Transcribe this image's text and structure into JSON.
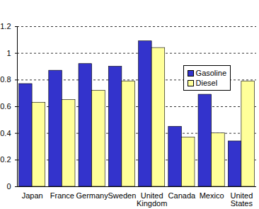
{
  "chart_data": {
    "type": "bar",
    "categories": [
      "Japan",
      "France",
      "Germany",
      "Sweden",
      "United Kingdom",
      "Canada",
      "Mexico",
      "United States"
    ],
    "series": [
      {
        "name": "Gasoline",
        "color": "#3333cc",
        "values": [
          0.77,
          0.87,
          0.92,
          0.9,
          1.09,
          0.45,
          0.69,
          0.34
        ]
      },
      {
        "name": "Diesel",
        "color": "#ffff99",
        "values": [
          0.63,
          0.65,
          0.72,
          0.79,
          1.04,
          0.37,
          0.4,
          0.79
        ]
      }
    ],
    "ylim": [
      0,
      1.2
    ],
    "yticks": [
      0,
      0.2,
      0.4,
      0.6,
      0.8,
      1,
      1.2
    ],
    "grid": true,
    "legend": "top-right"
  }
}
